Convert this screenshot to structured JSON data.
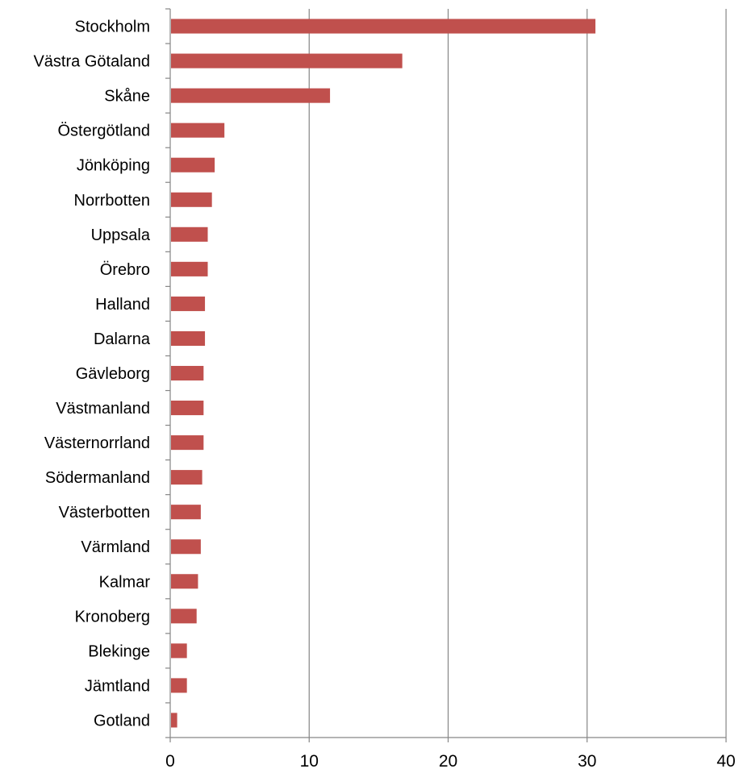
{
  "chart_data": {
    "type": "bar",
    "orientation": "horizontal",
    "title": "",
    "xlabel": "",
    "ylabel": "",
    "categories": [
      "Stockholm",
      "Västra Götaland",
      "Skåne",
      "Östergötland",
      "Jönköping",
      "Norrbotten",
      "Uppsala",
      "Örebro",
      "Halland",
      "Dalarna",
      "Gävleborg",
      "Västmanland",
      "Västernorrland",
      "Södermanland",
      "Västerbotten",
      "Värmland",
      "Kalmar",
      "Kronoberg",
      "Blekinge",
      "Jämtland",
      "Gotland"
    ],
    "values": [
      30.6,
      16.7,
      11.5,
      3.9,
      3.2,
      3.0,
      2.7,
      2.7,
      2.5,
      2.5,
      2.4,
      2.4,
      2.4,
      2.3,
      2.2,
      2.2,
      2.0,
      1.9,
      1.2,
      1.2,
      0.5
    ],
    "xlim": [
      0,
      40
    ],
    "x_ticks": [
      "0",
      "10",
      "20",
      "30",
      "40"
    ],
    "grid": "vertical",
    "legend": "none",
    "colors": {
      "bar": "#c0504d",
      "grid": "#868686",
      "axis": "#868686",
      "text": "#000000"
    }
  }
}
